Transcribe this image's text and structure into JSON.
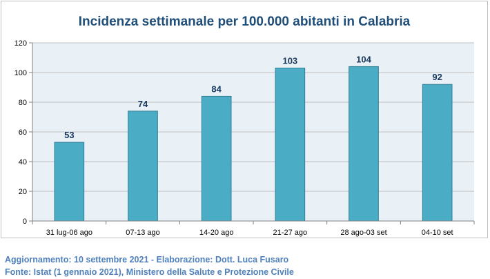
{
  "chart_data": {
    "type": "bar",
    "title": "Incidenza settimanale per 100.000 abitanti in Calabria",
    "categories": [
      "31 lug-06 ago",
      "07-13 ago",
      "14-20 ago",
      "21-27 ago",
      "28 ago-03 set",
      "04-10 set"
    ],
    "values": [
      53,
      74,
      84,
      103,
      104,
      92
    ],
    "data_labels": [
      "53",
      "74",
      "84",
      "103",
      "104",
      "92"
    ],
    "ylim": [
      0,
      120
    ],
    "yticks": [
      "0",
      "20",
      "40",
      "60",
      "80",
      "100",
      "120"
    ],
    "grid": true,
    "legend": "none",
    "colors": {
      "bar_fill": "#4bacc6",
      "bar_stroke": "#2f7f93",
      "plot_bg": "#eaf1f6",
      "grid": "#bfbfbf",
      "title": "#1f4e79",
      "data_label": "#17375e",
      "axis_text": "#000000"
    }
  },
  "footer": {
    "line1": "Aggiornamento: 10 settembre 2021 - Elaborazione: Dott. Luca Fusaro",
    "line2": "Fonte: Istat (1 gennaio 2021), Ministero della Salute e Protezione Civile"
  },
  "colors": {
    "footer_text": "#4f81bd"
  }
}
